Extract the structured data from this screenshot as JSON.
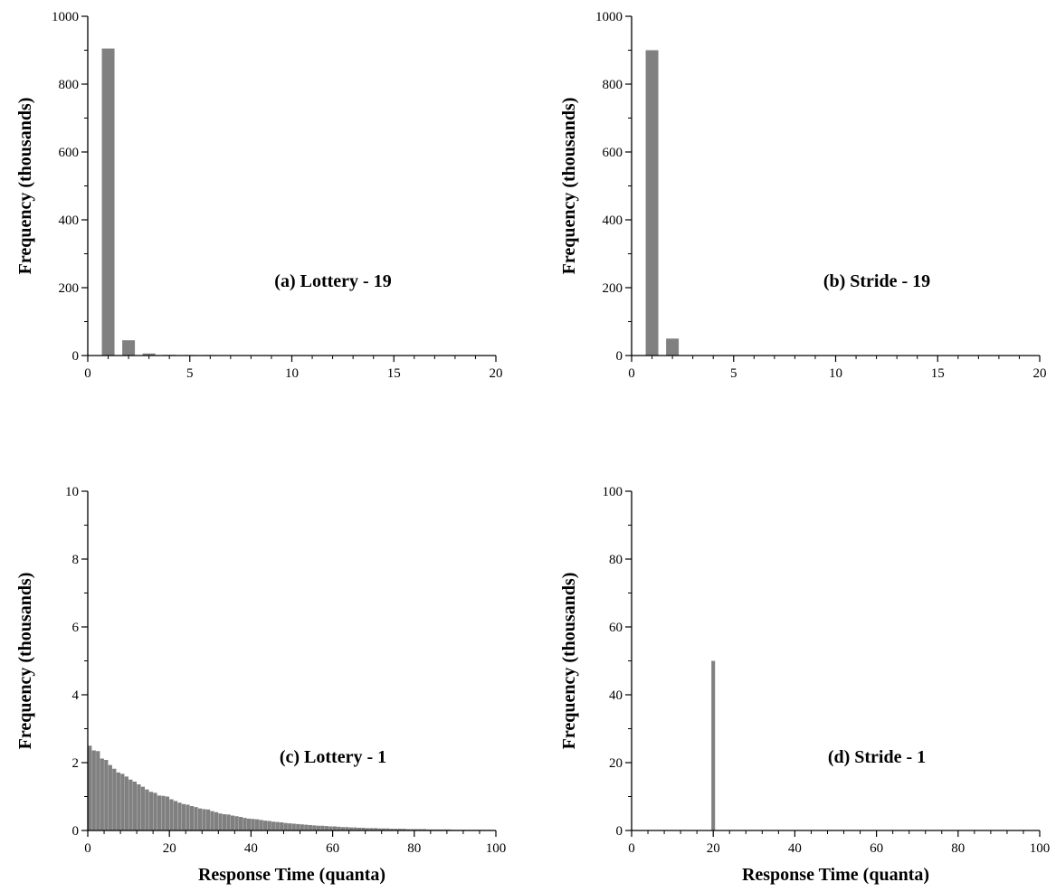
{
  "chart_data": [
    {
      "panel": "a",
      "type": "bar",
      "annotation": "(a) Lottery - 19",
      "ylabel": "Frequency (thousands)",
      "xlabel": "",
      "xlim": [
        0,
        20
      ],
      "ylim": [
        0,
        1000
      ],
      "xticks": [
        0,
        5,
        10,
        15,
        20
      ],
      "yticks": [
        0,
        200,
        400,
        600,
        800,
        1000
      ],
      "x": [
        1,
        2,
        3,
        4,
        5,
        6
      ],
      "values": [
        905,
        45,
        6,
        2,
        1,
        0.5
      ]
    },
    {
      "panel": "b",
      "type": "bar",
      "annotation": "(b) Stride - 19",
      "ylabel": "Frequency (thousands)",
      "xlabel": "",
      "xlim": [
        0,
        20
      ],
      "ylim": [
        0,
        1000
      ],
      "xticks": [
        0,
        5,
        10,
        15,
        20
      ],
      "yticks": [
        0,
        200,
        400,
        600,
        800,
        1000
      ],
      "x": [
        1,
        2
      ],
      "values": [
        900,
        50
      ]
    },
    {
      "panel": "c",
      "type": "bar",
      "annotation": "(c) Lottery - 1",
      "ylabel": "Frequency (thousands)",
      "xlabel": "Response Time (quanta)",
      "xlim": [
        0,
        100
      ],
      "ylim": [
        0,
        10
      ],
      "xticks": [
        0,
        20,
        40,
        60,
        80,
        100
      ],
      "yticks": [
        0,
        2,
        4,
        6,
        8,
        10
      ],
      "x": [
        1,
        2,
        3,
        4,
        5,
        6,
        7,
        8,
        9,
        10,
        11,
        12,
        13,
        14,
        15,
        16,
        17,
        18,
        19,
        20,
        21,
        22,
        23,
        24,
        25,
        26,
        27,
        28,
        29,
        30,
        31,
        32,
        33,
        34,
        35,
        36,
        37,
        38,
        39,
        40,
        41,
        42,
        43,
        44,
        45,
        46,
        47,
        48,
        49,
        50,
        51,
        52,
        53,
        54,
        55,
        56,
        57,
        58,
        59,
        60,
        61,
        62,
        63,
        64,
        65,
        66,
        67,
        68,
        69,
        70,
        71,
        72,
        73,
        74,
        75,
        76,
        77,
        78,
        79,
        80,
        81,
        82,
        83,
        84,
        85,
        86,
        87,
        88,
        89,
        90,
        91,
        92,
        93,
        94,
        95,
        96,
        97,
        98,
        99,
        100
      ],
      "values": [
        2.5,
        2.36,
        2.34,
        2.12,
        2.08,
        1.93,
        1.82,
        1.71,
        1.67,
        1.59,
        1.5,
        1.44,
        1.36,
        1.29,
        1.21,
        1.14,
        1.11,
        1.03,
        1.02,
        1.0,
        0.92,
        0.87,
        0.82,
        0.78,
        0.76,
        0.72,
        0.69,
        0.65,
        0.63,
        0.62,
        0.57,
        0.54,
        0.5,
        0.48,
        0.47,
        0.44,
        0.42,
        0.4,
        0.37,
        0.35,
        0.34,
        0.33,
        0.31,
        0.29,
        0.28,
        0.26,
        0.25,
        0.24,
        0.22,
        0.21,
        0.2,
        0.19,
        0.18,
        0.17,
        0.16,
        0.15,
        0.14,
        0.14,
        0.13,
        0.12,
        0.12,
        0.11,
        0.1,
        0.1,
        0.09,
        0.09,
        0.08,
        0.08,
        0.07,
        0.07,
        0.07,
        0.06,
        0.06,
        0.06,
        0.05,
        0.05,
        0.05,
        0.05,
        0.04,
        0.04,
        0.04,
        0.04,
        0.04,
        0.03,
        0.03,
        0.03,
        0.03,
        0.03,
        0.03,
        0.02,
        0.02,
        0.02,
        0.02,
        0.02,
        0.02,
        0.02,
        0.02,
        0.02,
        0.02,
        0.01
      ]
    },
    {
      "panel": "d",
      "type": "bar",
      "annotation": "(d) Stride - 1",
      "ylabel": "Frequency (thousands)",
      "xlabel": "Response Time (quanta)",
      "xlim": [
        0,
        100
      ],
      "ylim": [
        0,
        100
      ],
      "xticks": [
        0,
        20,
        40,
        60,
        80,
        100
      ],
      "yticks": [
        0,
        20,
        40,
        60,
        80,
        100
      ],
      "x": [
        20
      ],
      "values": [
        50
      ]
    }
  ],
  "colors": {
    "bar": "#808080",
    "axis": "#000000"
  }
}
